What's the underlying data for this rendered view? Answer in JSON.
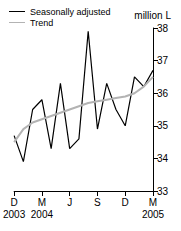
{
  "chart_data": {
    "type": "line",
    "ylabel": "million L",
    "categories": [
      "D\n2003",
      null,
      null,
      "M\n2004",
      null,
      null,
      "J",
      null,
      null,
      "S",
      null,
      null,
      "D",
      null,
      null,
      "M\n2005"
    ],
    "series": [
      {
        "name": "Seasonally adjusted",
        "color": "#000000",
        "values": [
          34.7,
          33.9,
          35.5,
          35.8,
          34.3,
          36.3,
          34.3,
          34.6,
          37.9,
          34.9,
          36.3,
          35.5,
          35.0,
          36.5,
          36.2,
          36.7
        ]
      },
      {
        "name": "Trend",
        "color": "#b3b3b3",
        "values": [
          34.5,
          34.9,
          35.1,
          35.2,
          35.3,
          35.4,
          35.5,
          35.6,
          35.7,
          35.75,
          35.8,
          35.85,
          35.9,
          36.0,
          36.2,
          36.5
        ]
      }
    ],
    "ylim": [
      33,
      38
    ],
    "yticks": [
      33,
      34,
      35,
      36,
      37,
      38
    ],
    "grid": false,
    "legend": "top-left"
  }
}
